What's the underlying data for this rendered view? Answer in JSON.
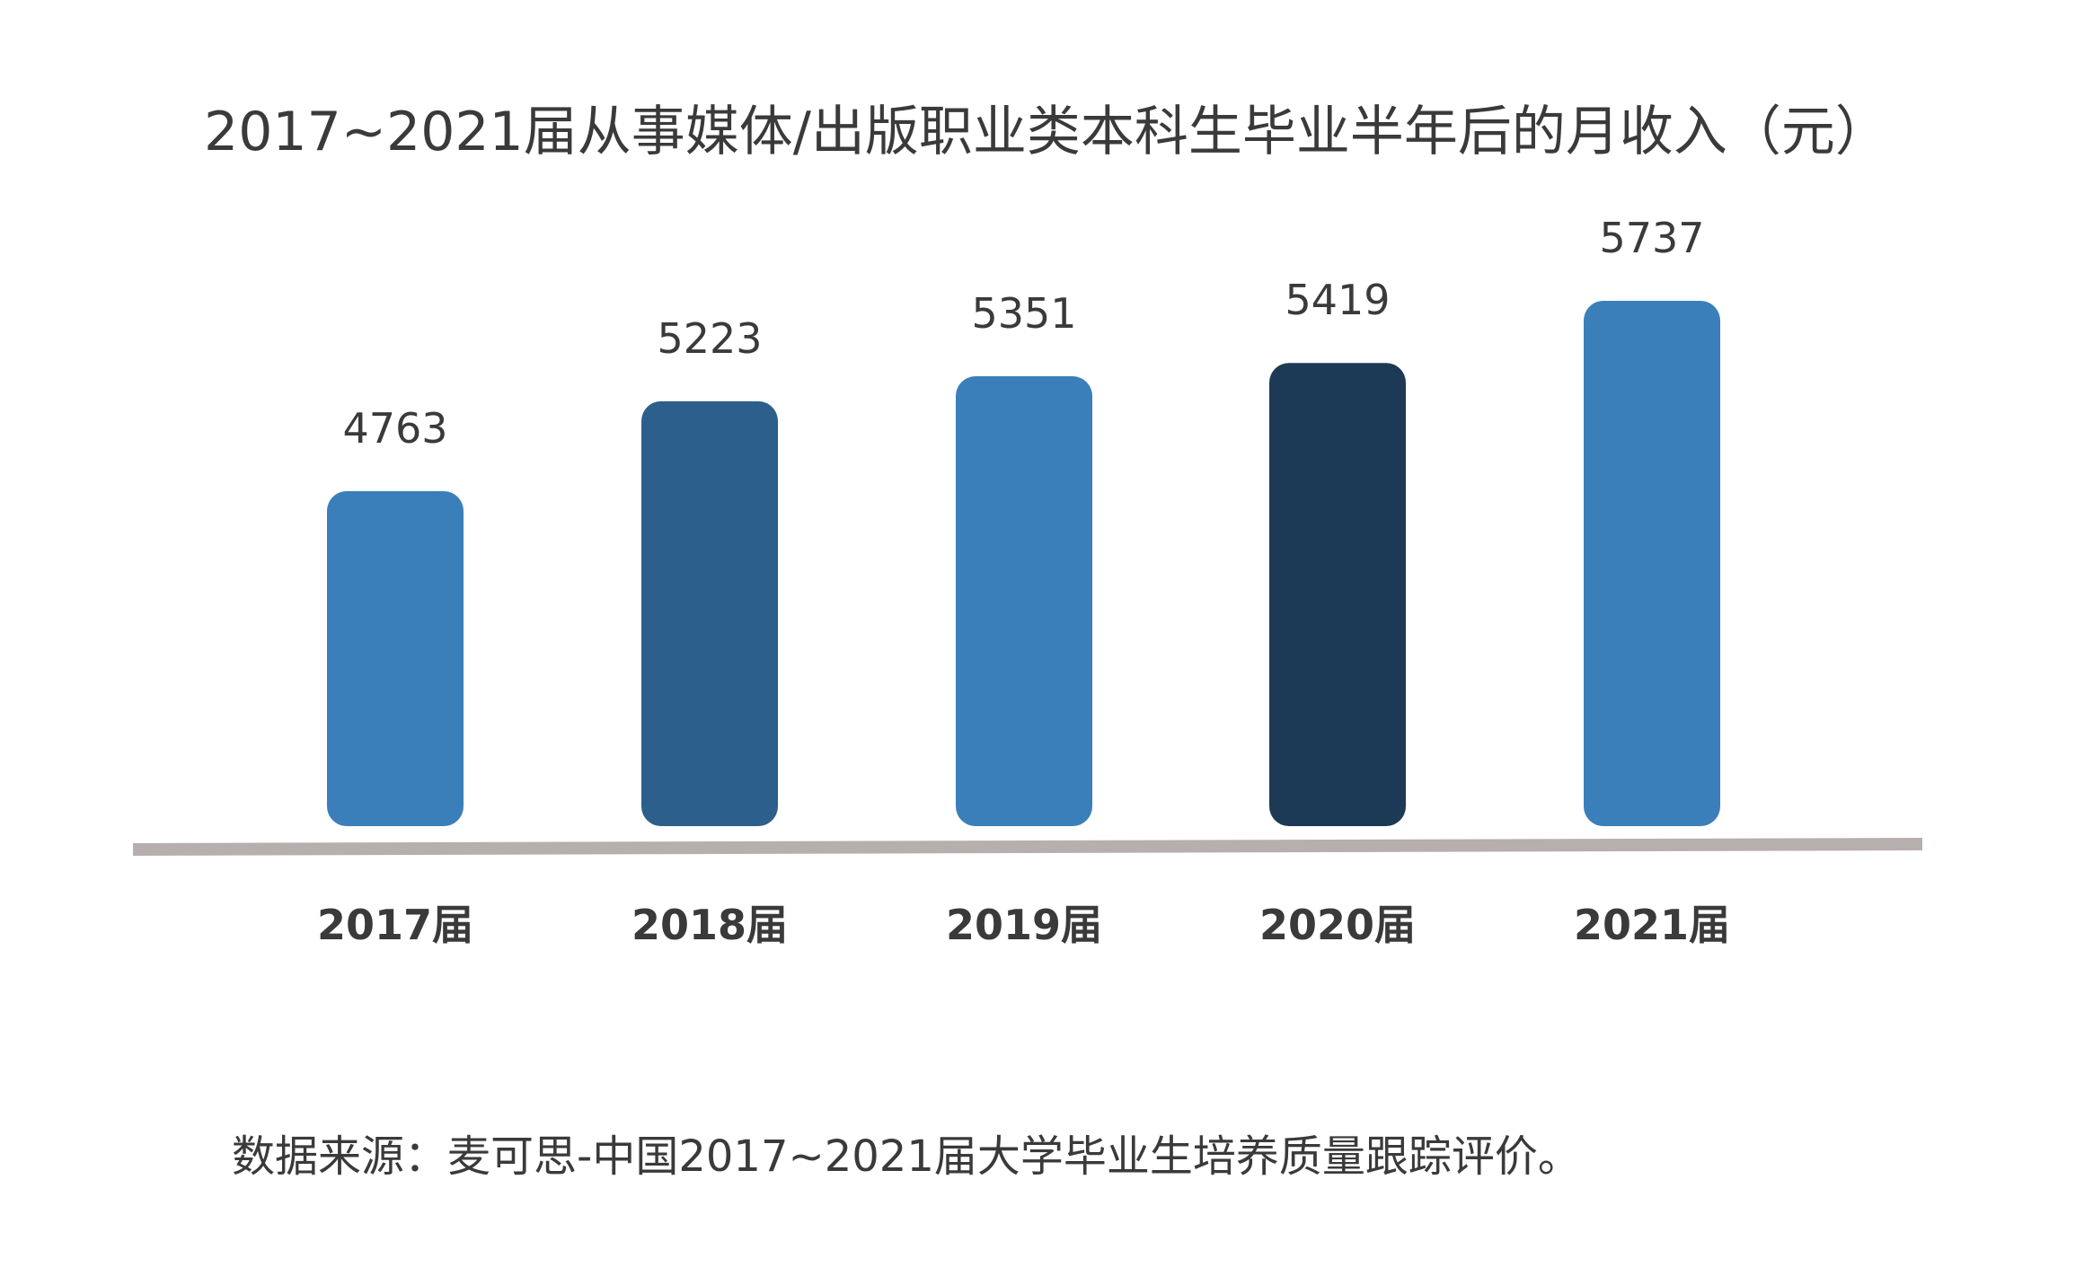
{
  "chart_data": {
    "type": "bar",
    "title": "2017~2021届从事媒体/出版职业类本科生毕业半年后的月收入（元）",
    "xlabel": "",
    "ylabel": "",
    "categories": [
      "2017届",
      "2018届",
      "2019届",
      "2020届",
      "2021届"
    ],
    "series": [
      {
        "values": [
          4763,
          5223,
          5351,
          5419,
          5737
        ]
      }
    ],
    "data_labels": [
      "4763",
      "5223",
      "5351",
      "5419",
      "5737"
    ],
    "bar_colors": [
      "#3a7fba",
      "#2c5f8b",
      "#3a7fba",
      "#1c3a55",
      "#3a7fba"
    ],
    "axis_color": "#b7aeae",
    "legend": "none",
    "grid": false
  },
  "source": "数据来源：麦可思-中国2017~2021届大学毕业生培养质量跟踪评价。"
}
